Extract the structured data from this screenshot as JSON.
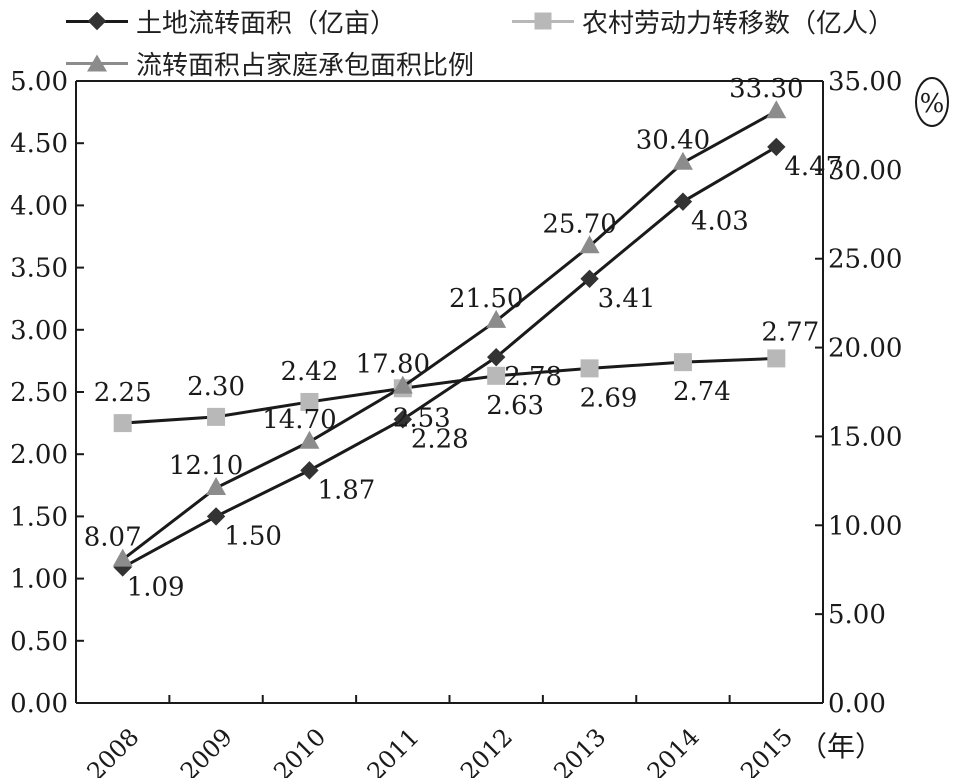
{
  "legend": {
    "land_area": "土地流转面积（亿亩）",
    "labor": "农村劳动力转移数（亿人）",
    "ratio": "流转面积占家庭承包面积比例"
  },
  "colors": {
    "land_area": "#333333",
    "labor": "#b8b8b8",
    "ratio": "#8c8c8c",
    "line_main": "#1a1a1a",
    "axis": "#1a1a1a"
  },
  "chart_data": {
    "type": "line",
    "categories": [
      "2008",
      "2009",
      "2010",
      "2011",
      "2012",
      "2013",
      "2014",
      "2015"
    ],
    "x_unit": "（年）",
    "y_left": {
      "ylim": [
        0,
        5
      ],
      "ticks": [
        "0.00",
        "0.50",
        "1.00",
        "1.50",
        "2.00",
        "2.50",
        "3.00",
        "3.50",
        "4.00",
        "4.50",
        "5.00"
      ]
    },
    "y_right": {
      "ylim": [
        0,
        35
      ],
      "ticks": [
        "0.00",
        "5.00",
        "10.00",
        "15.00",
        "20.00",
        "25.00",
        "30.00",
        "35.00"
      ],
      "unit": "%"
    },
    "series": [
      {
        "name": "土地流转面积（亿亩）",
        "axis": "left",
        "marker": "diamond",
        "values": [
          1.09,
          1.5,
          1.87,
          2.28,
          2.78,
          3.41,
          4.03,
          4.47
        ],
        "labels": [
          "1.09",
          "1.50",
          "1.87",
          "2.28",
          "2.78",
          "3.41",
          "4.03",
          "4.47"
        ]
      },
      {
        "name": "农村劳动力转移数（亿人）",
        "axis": "left",
        "marker": "square",
        "values": [
          2.25,
          2.3,
          2.42,
          2.53,
          2.63,
          2.69,
          2.74,
          2.77
        ],
        "labels": [
          "2.25",
          "2.30",
          "2.42",
          "2.53",
          "2.63",
          "2.69",
          "2.74",
          "2.77"
        ]
      },
      {
        "name": "流转面积占家庭承包面积比例",
        "axis": "right",
        "marker": "triangle",
        "values": [
          8.07,
          12.1,
          14.7,
          17.8,
          21.5,
          25.7,
          30.4,
          33.3
        ],
        "labels": [
          "8.07",
          "12.10",
          "14.70",
          "17.80",
          "21.50",
          "25.70",
          "30.40",
          "33.30"
        ]
      }
    ]
  }
}
